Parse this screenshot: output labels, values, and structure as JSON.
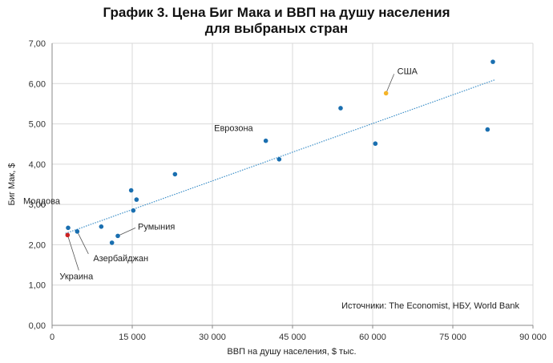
{
  "chart_data": {
    "type": "scatter",
    "title_line1": "График 3. Цена Биг Мака и ВВП на душу населения",
    "title_line2": "для выбраных стран",
    "xlabel": "ВВП на душу населения, $ тыс.",
    "ylabel": "Биг Мак, $",
    "xlim": [
      0,
      90000
    ],
    "ylim": [
      0,
      7
    ],
    "x_ticks": [
      0,
      15000,
      30000,
      45000,
      60000,
      75000,
      90000
    ],
    "x_tick_labels": [
      "0",
      "15 000",
      "30 000",
      "45 000",
      "60 000",
      "75 000",
      "90 000"
    ],
    "y_ticks": [
      0,
      1,
      2,
      3,
      4,
      5,
      6,
      7
    ],
    "y_tick_labels": [
      "0,00",
      "1,00",
      "2,00",
      "3,00",
      "4,00",
      "5,00",
      "6,00",
      "7,00"
    ],
    "grid": true,
    "colors": {
      "default": "#1a6fb0",
      "usa": "#f5b428",
      "ukraine": "#cc2222",
      "trend": "#3c8fc8"
    },
    "points": [
      {
        "x": 3000,
        "y": 2.42,
        "label": "Молдова",
        "color": "default"
      },
      {
        "x": 2900,
        "y": 2.24,
        "label": "Украина",
        "color": "ukraine"
      },
      {
        "x": 4700,
        "y": 2.33,
        "label": "Азербайджан",
        "color": "default"
      },
      {
        "x": 9200,
        "y": 2.45,
        "label": "",
        "color": "default"
      },
      {
        "x": 11200,
        "y": 2.05,
        "label": "",
        "color": "default"
      },
      {
        "x": 12300,
        "y": 2.22,
        "label": "Румыния",
        "color": "default"
      },
      {
        "x": 14800,
        "y": 3.35,
        "label": "",
        "color": "default"
      },
      {
        "x": 15200,
        "y": 2.85,
        "label": "",
        "color": "default"
      },
      {
        "x": 15800,
        "y": 3.12,
        "label": "",
        "color": "default"
      },
      {
        "x": 23000,
        "y": 3.75,
        "label": "",
        "color": "default"
      },
      {
        "x": 40000,
        "y": 4.58,
        "label": "Еврозона",
        "color": "default"
      },
      {
        "x": 42500,
        "y": 4.12,
        "label": "",
        "color": "default"
      },
      {
        "x": 54000,
        "y": 5.39,
        "label": "",
        "color": "default"
      },
      {
        "x": 60500,
        "y": 4.51,
        "label": "",
        "color": "default"
      },
      {
        "x": 62500,
        "y": 5.76,
        "label": "США",
        "color": "usa"
      },
      {
        "x": 81500,
        "y": 4.86,
        "label": "",
        "color": "default"
      },
      {
        "x": 82500,
        "y": 6.54,
        "label": "",
        "color": "default"
      }
    ],
    "trendline": {
      "x1": 2500,
      "y1": 2.28,
      "x2": 83000,
      "y2": 6.1
    },
    "source": "Источники: The Economist, НБУ, World Bank"
  }
}
